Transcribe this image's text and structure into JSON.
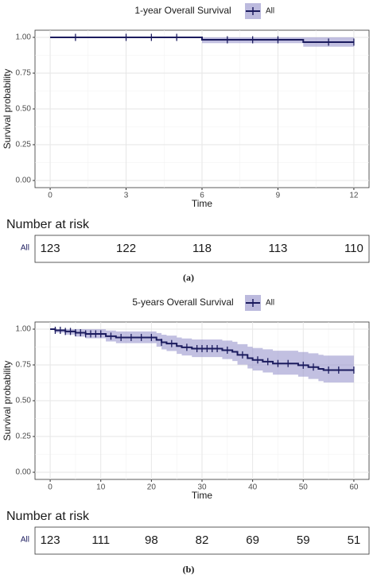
{
  "chart_data": [
    {
      "type": "survival",
      "title": "1-year Overall Survival",
      "x_label": "Time",
      "y_label": "Survival probability",
      "xlim": [
        -0.6,
        12.6
      ],
      "xticks": [
        0,
        3,
        6,
        9,
        12
      ],
      "ylim": [
        -0.05,
        1.05
      ],
      "yticks": [
        {
          "value": 0,
          "label": "0.00"
        },
        {
          "value": 0.25,
          "label": "0.25"
        },
        {
          "value": 0.5,
          "label": "0.50"
        },
        {
          "value": 0.75,
          "label": "0.75"
        },
        {
          "value": 1,
          "label": "1.00"
        }
      ],
      "grid": true,
      "series": [
        {
          "name": "All",
          "color": "#1b1b5e",
          "band_color": "#8f8cc8",
          "x": [
            0,
            6,
            10
          ],
          "values": [
            1,
            0.983,
            0.967
          ],
          "lower": [
            1,
            0.96,
            0.935
          ],
          "upper": [
            1,
            1,
            1
          ],
          "censor_x": [
            1,
            3,
            4,
            5,
            7,
            8,
            9,
            11,
            12
          ]
        }
      ],
      "risk_table": {
        "title": "Number at risk",
        "strata": "All",
        "values": [
          123,
          122,
          118,
          113,
          110
        ]
      },
      "caption": "(a)"
    },
    {
      "type": "survival",
      "title": "5-years Overall Survival",
      "x_label": "Time",
      "y_label": "Survival probability",
      "xlim": [
        -3,
        63
      ],
      "xticks": [
        0,
        10,
        20,
        30,
        40,
        50,
        60
      ],
      "ylim": [
        -0.05,
        1.05
      ],
      "yticks": [
        {
          "value": 0,
          "label": "0.00"
        },
        {
          "value": 0.25,
          "label": "0.25"
        },
        {
          "value": 0.5,
          "label": "0.50"
        },
        {
          "value": 0.75,
          "label": "0.75"
        },
        {
          "value": 1,
          "label": "1.00"
        }
      ],
      "grid": true,
      "series": [
        {
          "name": "All",
          "color": "#1b1b5e",
          "band_color": "#8f8cc8",
          "x": [
            0,
            1,
            3,
            5,
            7,
            11,
            13,
            21,
            22,
            23,
            25,
            26,
            28,
            34,
            36,
            37,
            39,
            40,
            42,
            44,
            49,
            51,
            53,
            54
          ],
          "values": [
            1,
            0.992,
            0.984,
            0.975,
            0.967,
            0.951,
            0.942,
            0.925,
            0.908,
            0.899,
            0.882,
            0.873,
            0.864,
            0.853,
            0.842,
            0.82,
            0.797,
            0.785,
            0.773,
            0.76,
            0.748,
            0.735,
            0.722,
            0.714
          ],
          "lower": [
            1,
            0.976,
            0.962,
            0.948,
            0.936,
            0.914,
            0.902,
            0.878,
            0.858,
            0.847,
            0.827,
            0.816,
            0.805,
            0.791,
            0.777,
            0.752,
            0.725,
            0.711,
            0.697,
            0.682,
            0.668,
            0.652,
            0.637,
            0.627
          ],
          "upper": [
            1,
            1,
            1,
            1,
            0.999,
            0.99,
            0.984,
            0.973,
            0.961,
            0.955,
            0.942,
            0.935,
            0.928,
            0.92,
            0.912,
            0.895,
            0.877,
            0.868,
            0.859,
            0.849,
            0.84,
            0.831,
            0.821,
            0.815
          ],
          "censor_x": [
            1,
            2,
            3,
            4,
            5,
            6,
            7,
            8,
            9,
            10,
            12,
            14,
            16,
            18,
            20,
            22,
            24,
            27,
            29,
            30,
            31,
            32,
            33,
            35,
            38,
            41,
            43,
            45,
            47,
            50,
            52,
            55,
            57,
            60
          ]
        }
      ],
      "risk_table": {
        "title": "Number at risk",
        "strata": "All",
        "values": [
          123,
          111,
          98,
          82,
          69,
          59,
          51
        ]
      },
      "caption": "(b)"
    }
  ]
}
